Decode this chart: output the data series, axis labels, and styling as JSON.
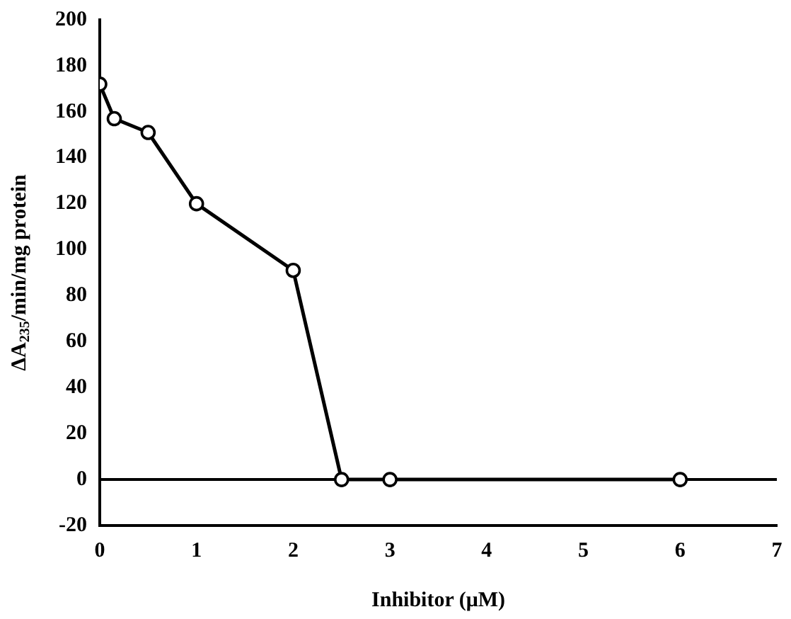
{
  "chart_data": {
    "type": "line",
    "xlabel": "Inhibitor (μM)",
    "ylabel": "ΔA$_{235}$/min/mg protein",
    "x": [
      0,
      0.15,
      0.5,
      1,
      2,
      2.5,
      3,
      6
    ],
    "series": [
      {
        "color": "#000000",
        "values": [
          172,
          157,
          151,
          120,
          91,
          0,
          0,
          0
        ]
      }
    ],
    "xlim": [
      0,
      7
    ],
    "xticks": [
      0,
      1,
      2,
      3,
      4,
      5,
      6,
      7
    ],
    "ylim": [
      -20,
      200
    ],
    "yticks": [
      -20,
      0,
      20,
      40,
      60,
      80,
      100,
      120,
      140,
      160,
      180,
      200
    ],
    "ref_lines": [
      {
        "axis": "y",
        "value": 0,
        "color": "#000000"
      }
    ],
    "marker": "circle",
    "line_style": "solid",
    "grid": false,
    "legend": false
  }
}
